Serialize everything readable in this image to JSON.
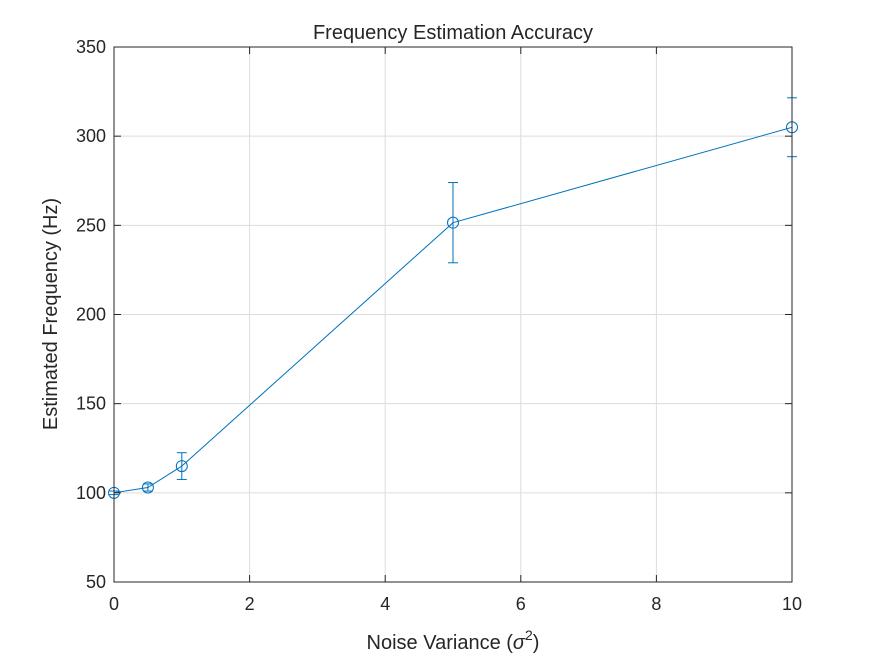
{
  "chart_data": {
    "type": "line",
    "title": "Frequency Estimation Accuracy",
    "xlabel": "Noise Variance (",
    "xlabel_symbol": "σ",
    "xlabel_exponent": "2",
    "xlabel_suffix": ")",
    "ylabel": "Estimated Frequency (Hz)",
    "xlim": [
      0,
      10
    ],
    "ylim": [
      50,
      350
    ],
    "xticks": [
      0,
      2,
      4,
      6,
      8,
      10
    ],
    "yticks": [
      50,
      100,
      150,
      200,
      250,
      300,
      350
    ],
    "grid": true,
    "marker": "circle",
    "series": [
      {
        "x": [
          0,
          0.5,
          1,
          5,
          10
        ],
        "y": [
          100,
          103,
          115,
          251.5,
          305
        ],
        "err_low": [
          1,
          2,
          7.5,
          22.5,
          16.5
        ],
        "err_high": [
          1,
          2,
          7.5,
          22.5,
          16.5
        ],
        "color": "#0072BD"
      }
    ]
  }
}
